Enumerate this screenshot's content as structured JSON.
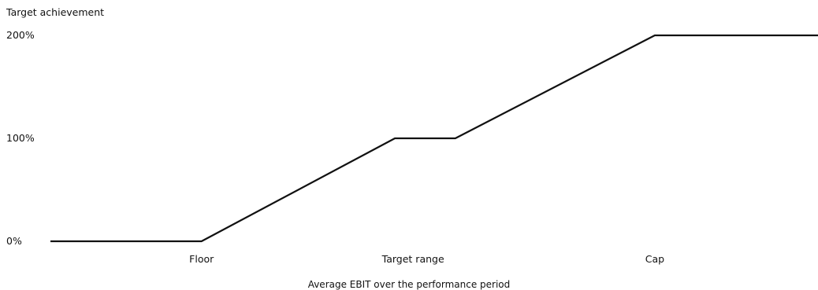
{
  "chart_data": {
    "type": "line",
    "ylabel": "Target achievement",
    "xlabel": "Average EBIT over the performance period",
    "y_ticks": [
      {
        "value": 0,
        "label": "0%"
      },
      {
        "value": 100,
        "label": "100%"
      },
      {
        "value": 200,
        "label": "200%"
      }
    ],
    "ylim": [
      0,
      200
    ],
    "x_ticks": [
      {
        "value": 2.5,
        "label": "Floor"
      },
      {
        "value": 6.0,
        "label": "Target range"
      },
      {
        "value": 10.0,
        "label": "Cap"
      }
    ],
    "xlim": [
      0,
      12.7
    ],
    "grid": false,
    "legend": "none",
    "series": [
      {
        "color": "#111111",
        "points": [
          {
            "x": 0,
            "y": 0
          },
          {
            "x": 2.5,
            "y": 0
          },
          {
            "x": 5.7,
            "y": 100
          },
          {
            "x": 6.7,
            "y": 100
          },
          {
            "x": 10.0,
            "y": 200
          },
          {
            "x": 12.7,
            "y": 200
          }
        ]
      }
    ]
  }
}
